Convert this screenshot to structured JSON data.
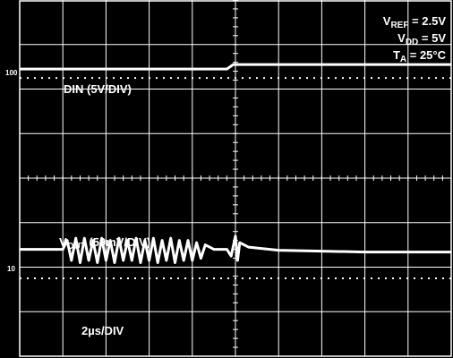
{
  "chart_data": {
    "type": "line",
    "title": "",
    "xlabel": "",
    "ylabel": "",
    "grid": true,
    "x_divisions": 10,
    "y_divisions": 8,
    "x_range_div": [
      0,
      10
    ],
    "y_range_div": [
      0,
      8
    ],
    "colors": {
      "background": "#000000",
      "grid": "#ffffff",
      "trace": "#ffffff"
    },
    "conditions": [
      {
        "sym": "V",
        "sub": "REF",
        "rest": " = 2.5V"
      },
      {
        "sym": "V",
        "sub": "DD",
        "rest": " = 5V"
      },
      {
        "sym": "T",
        "sub": "A",
        "rest": " = 25°C"
      }
    ],
    "markers": {
      "upper": "100",
      "lower": "10"
    },
    "time_scale": "2µs/DIV",
    "series": [
      {
        "name": "DIN (5V/DIV)",
        "label_sym": "DIN (5V/DIV)",
        "x": [
          0,
          4.8,
          4.95,
          10
        ],
        "y": [
          6.45,
          6.45,
          6.55,
          6.55
        ]
      },
      {
        "name": "VOUT (50mV/DIV)",
        "label_sym": "V",
        "label_sub": "OUT",
        "label_rest": " (50mV/DIV)",
        "x": [
          0,
          1.0,
          1.1,
          1.2,
          1.3,
          1.4,
          1.5,
          1.6,
          1.7,
          1.8,
          1.9,
          2.0,
          2.1,
          2.2,
          2.3,
          2.4,
          2.5,
          2.6,
          2.7,
          2.8,
          2.9,
          3.0,
          3.1,
          3.2,
          3.3,
          3.4,
          3.5,
          3.6,
          3.7,
          3.8,
          3.9,
          4.0,
          4.1,
          4.2,
          4.3,
          4.5,
          4.8,
          4.9,
          5.0,
          5.05,
          5.1,
          5.3,
          5.6,
          6.0,
          7.0,
          8.0,
          9.0,
          10
        ],
        "y": [
          2.4,
          2.4,
          2.6,
          2.15,
          2.65,
          2.1,
          2.65,
          2.15,
          2.6,
          2.1,
          2.65,
          2.15,
          2.6,
          2.1,
          2.65,
          2.15,
          2.6,
          2.15,
          2.65,
          2.1,
          2.6,
          2.15,
          2.65,
          2.1,
          2.6,
          2.15,
          2.65,
          2.1,
          2.6,
          2.15,
          2.6,
          2.15,
          2.55,
          2.2,
          2.5,
          2.4,
          2.4,
          2.25,
          2.7,
          2.15,
          2.55,
          2.45,
          2.42,
          2.38,
          2.36,
          2.34,
          2.34,
          2.34
        ]
      }
    ]
  }
}
